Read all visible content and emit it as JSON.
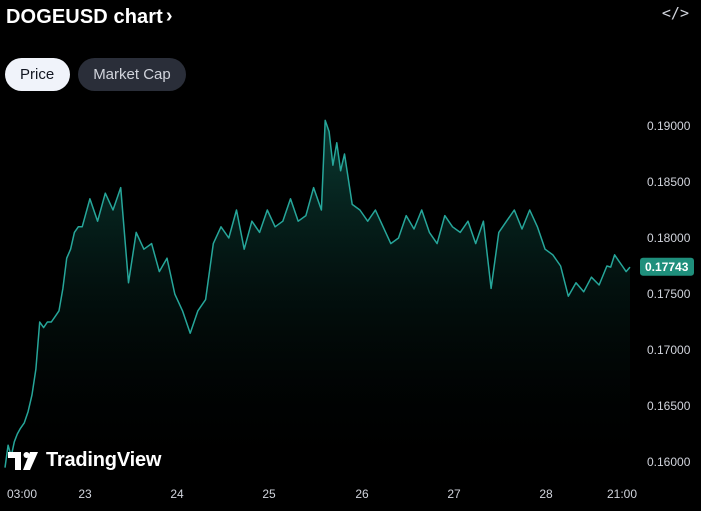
{
  "header": {
    "title": "DOGEUSD chart",
    "chevron": "›",
    "embed_icon": "code-icon",
    "embed_glyph": "</>"
  },
  "tabs": [
    {
      "label": "Price",
      "active": true
    },
    {
      "label": "Market Cap",
      "active": false
    }
  ],
  "logo": {
    "text": "TradingView"
  },
  "colors": {
    "line": "#26a69a",
    "badge": "#1f8f7c",
    "background": "#000000",
    "text": "#d1d4dc"
  },
  "chart_data": {
    "type": "area",
    "symbol": "DOGEUSD",
    "ylim": [
      0.1595,
      0.1925
    ],
    "y_ticks": [
      "0.16000",
      "0.16500",
      "0.17000",
      "0.17500",
      "0.18000",
      "0.18500",
      "0.19000"
    ],
    "x_ticks": [
      "03:00",
      "23",
      "24",
      "25",
      "26",
      "27",
      "28",
      "21:00"
    ],
    "last_price": "0.17743",
    "x": [
      0,
      0.04,
      0.08,
      0.12,
      0.16,
      0.2,
      0.25,
      0.3,
      0.35,
      0.4,
      0.45,
      0.5,
      0.55,
      0.6,
      0.65,
      0.7,
      0.75,
      0.8,
      0.85,
      0.9,
      0.95,
      1.0,
      1.1,
      1.2,
      1.3,
      1.4,
      1.5,
      1.6,
      1.7,
      1.8,
      1.9,
      2.0,
      2.1,
      2.2,
      2.3,
      2.4,
      2.5,
      2.6,
      2.7,
      2.8,
      2.9,
      3.0,
      3.1,
      3.2,
      3.3,
      3.4,
      3.5,
      3.6,
      3.7,
      3.8,
      3.9,
      4.0,
      4.1,
      4.15,
      4.2,
      4.25,
      4.3,
      4.35,
      4.4,
      4.5,
      4.6,
      4.7,
      4.8,
      4.9,
      5.0,
      5.1,
      5.2,
      5.3,
      5.4,
      5.5,
      5.6,
      5.7,
      5.8,
      5.9,
      6.0,
      6.1,
      6.2,
      6.3,
      6.4,
      6.5,
      6.6,
      6.7,
      6.8,
      6.9,
      7.0,
      7.1,
      7.2,
      7.3,
      7.4,
      7.5,
      7.6,
      7.7,
      7.8,
      7.85,
      7.9,
      7.95,
      8.0,
      8.05,
      8.1
    ],
    "values": [
      0.1595,
      0.1615,
      0.1605,
      0.1618,
      0.1625,
      0.163,
      0.1635,
      0.1645,
      0.166,
      0.1683,
      0.1725,
      0.172,
      0.1725,
      0.1725,
      0.173,
      0.1735,
      0.1755,
      0.1782,
      0.179,
      0.1805,
      0.181,
      0.181,
      0.1835,
      0.1815,
      0.184,
      0.1825,
      0.1845,
      0.176,
      0.1805,
      0.179,
      0.1795,
      0.177,
      0.1782,
      0.175,
      0.1735,
      0.1715,
      0.1735,
      0.1745,
      0.1795,
      0.181,
      0.18,
      0.1825,
      0.179,
      0.1815,
      0.1805,
      0.1825,
      0.181,
      0.1815,
      0.1835,
      0.1815,
      0.182,
      0.1845,
      0.1825,
      0.1905,
      0.1895,
      0.1865,
      0.1885,
      0.186,
      0.1875,
      0.183,
      0.1825,
      0.1815,
      0.1825,
      0.181,
      0.1795,
      0.18,
      0.182,
      0.1808,
      0.1825,
      0.1805,
      0.1795,
      0.182,
      0.181,
      0.1805,
      0.1815,
      0.1795,
      0.1815,
      0.1755,
      0.1805,
      0.1815,
      0.1825,
      0.1808,
      0.1825,
      0.181,
      0.179,
      0.1785,
      0.1775,
      0.1748,
      0.176,
      0.1752,
      0.1765,
      0.1758,
      0.1775,
      0.1774,
      0.1785,
      0.178,
      0.1775,
      0.177,
      0.1774
    ]
  }
}
